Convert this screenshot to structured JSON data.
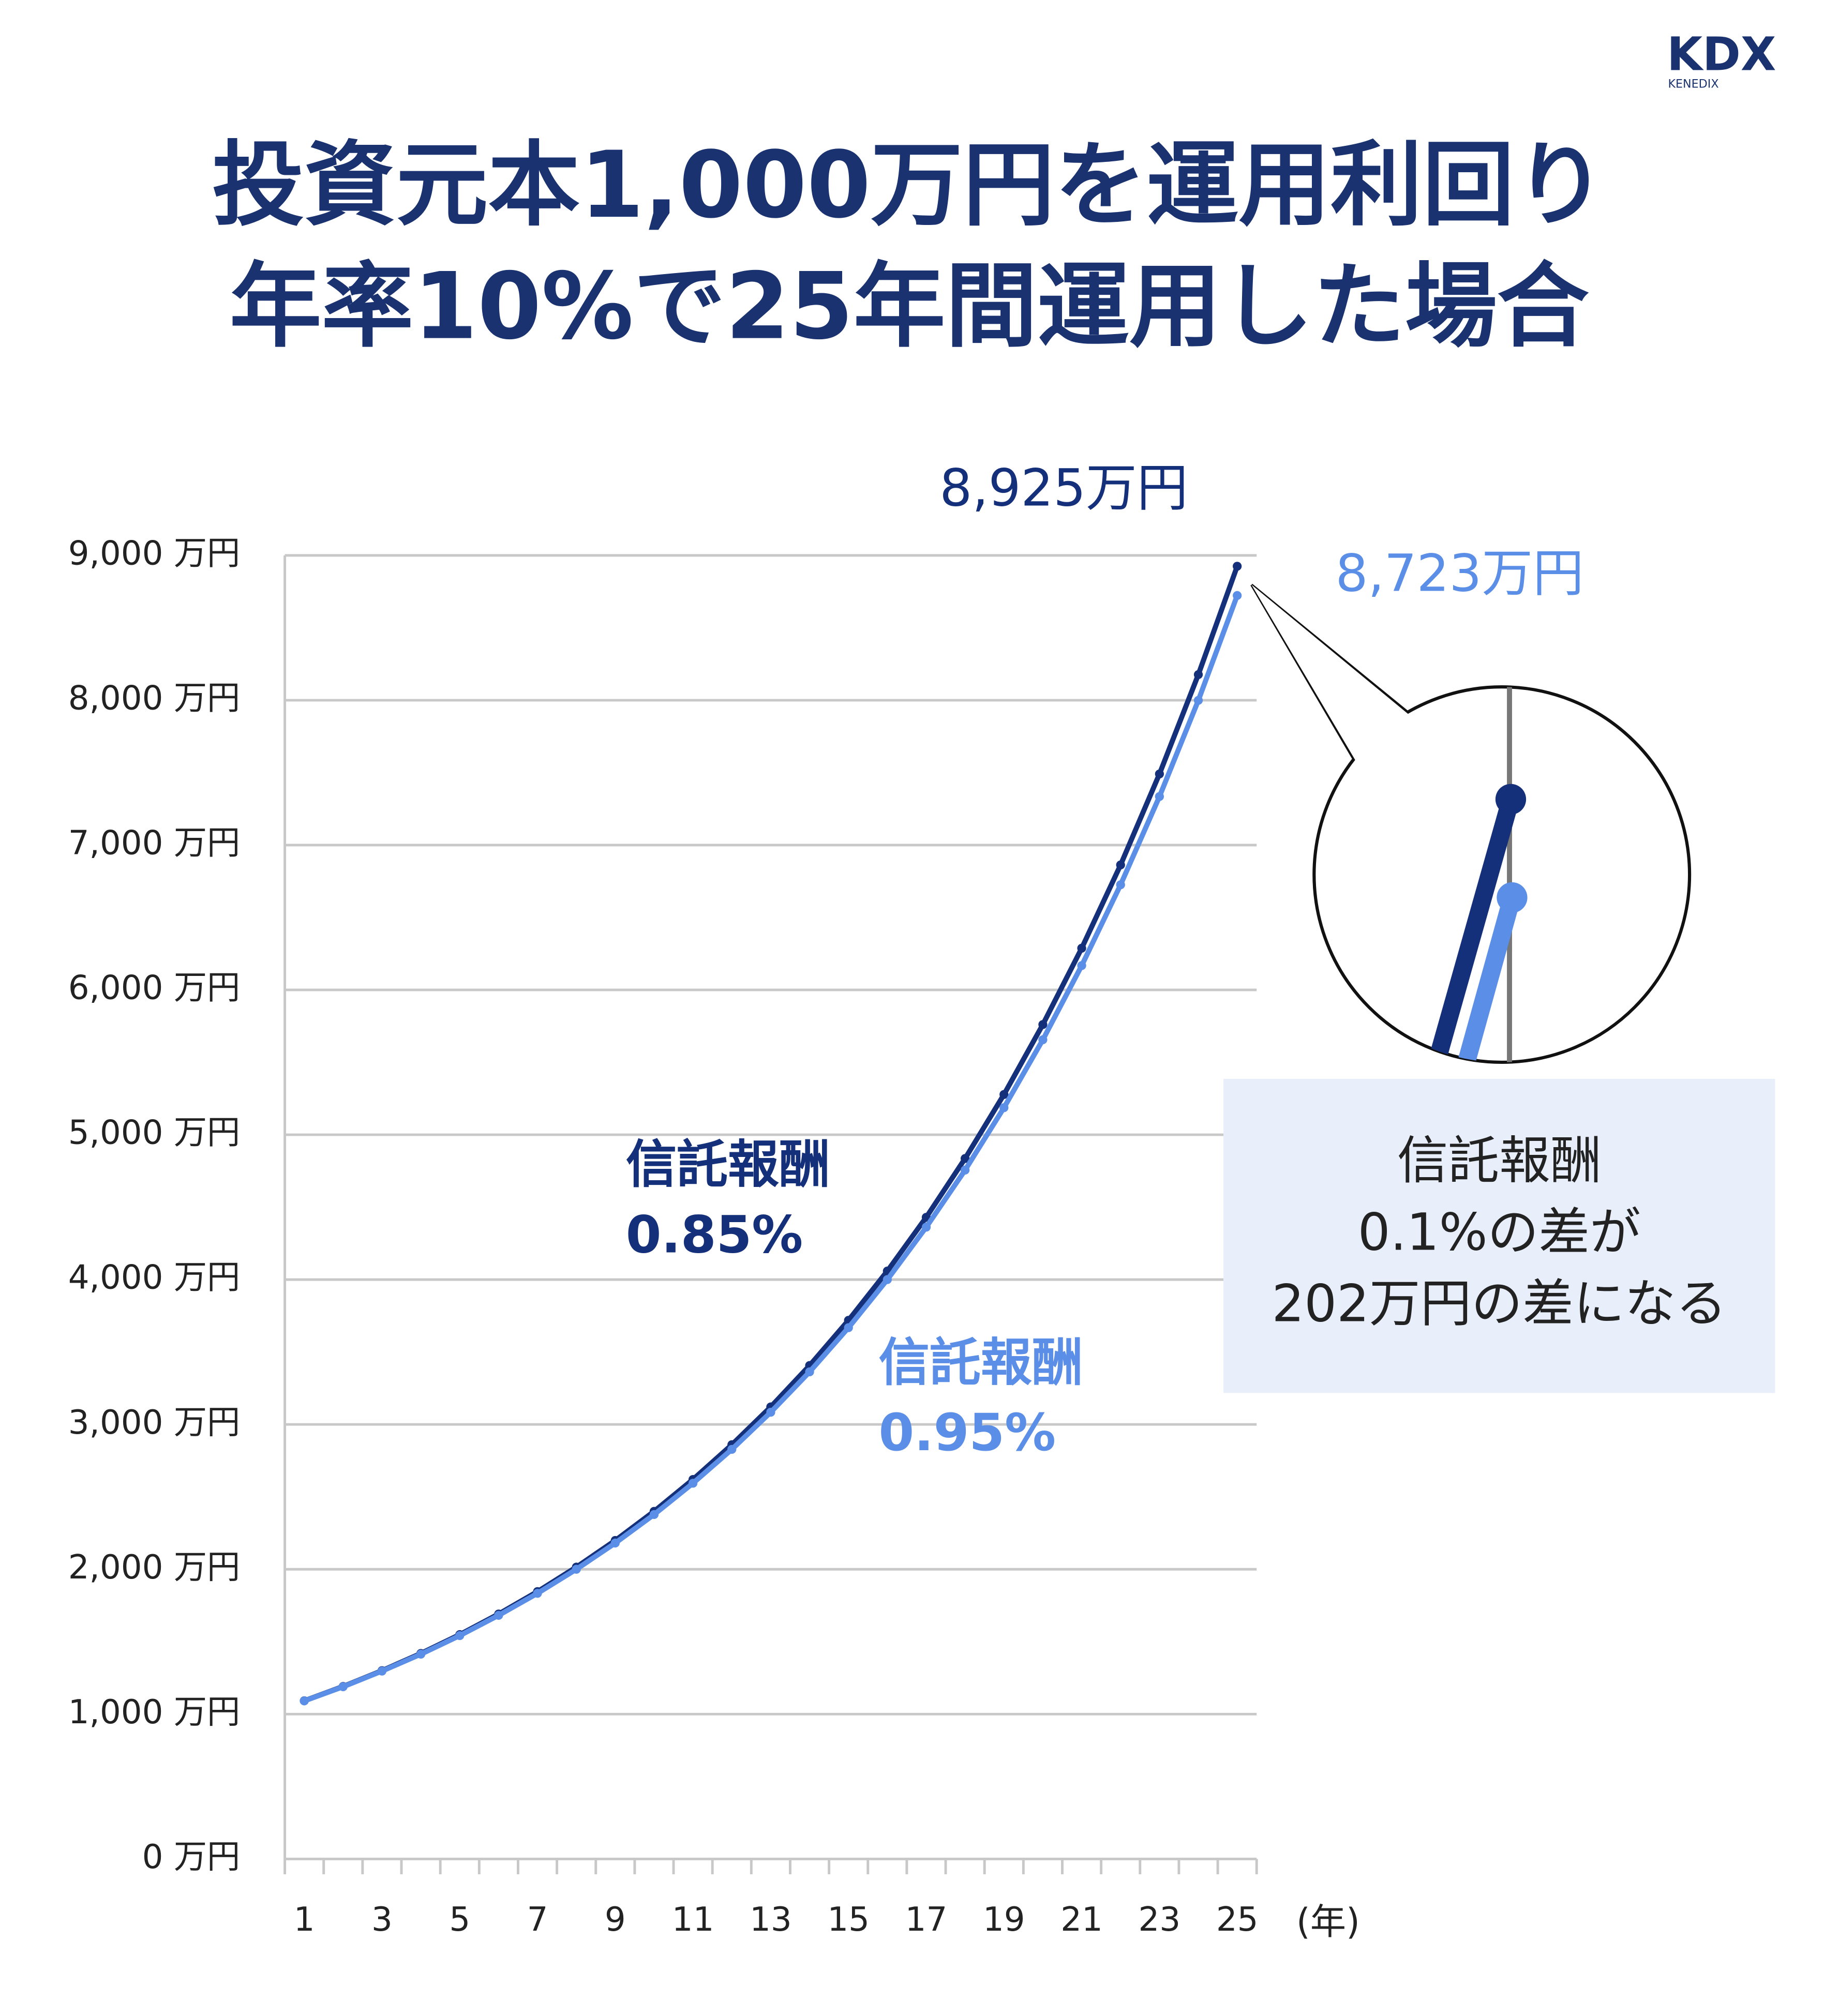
{
  "header": {
    "logo": "KDX",
    "logo_sub": "KENEDIX",
    "title_lines": [
      "投資元本1,000万円を運用利回り",
      "年率10%で25年間運用した場合"
    ]
  },
  "chart_data": {
    "type": "line",
    "categories": [
      "1",
      null,
      "3",
      null,
      "5",
      null,
      "7",
      null,
      "9",
      null,
      "11",
      null,
      "13",
      null,
      "15",
      null,
      "17",
      null,
      "19",
      null,
      "21",
      null,
      "23",
      null,
      "25"
    ],
    "x_label": "(年)",
    "series": [
      {
        "name": "信託報酬",
        "rate": "0.85%",
        "color": "#15307a",
        "values": [
          1092,
          1191,
          1300,
          1419,
          1549,
          1691,
          1846,
          2015,
          2199,
          2400,
          2620,
          2860,
          3121,
          3407,
          3719,
          4059,
          4430,
          4836,
          5278,
          5761,
          6288,
          6863,
          7491,
          8177,
          8925
        ],
        "value_labels": [
          null,
          null,
          null,
          null,
          null,
          null,
          null,
          null,
          null,
          null,
          null,
          null,
          null,
          null,
          null,
          null,
          null,
          null,
          null,
          null,
          null,
          null,
          null,
          null,
          "8,925万円"
        ]
      },
      {
        "name": "信託報酬",
        "rate": "0.95%",
        "color": "#5b8ee6",
        "values": [
          1091,
          1189,
          1297,
          1414,
          1542,
          1682,
          1834,
          2000,
          2181,
          2378,
          2594,
          2828,
          3084,
          3363,
          3668,
          4000,
          4362,
          4756,
          5187,
          5656,
          6168,
          6726,
          7335,
          7999,
          8723
        ],
        "value_labels": [
          null,
          null,
          null,
          null,
          null,
          null,
          null,
          null,
          null,
          null,
          null,
          null,
          null,
          null,
          null,
          null,
          null,
          null,
          null,
          null,
          null,
          null,
          null,
          null,
          "8,723万円"
        ]
      }
    ],
    "ylim": [
      0,
      9000
    ],
    "yticks": [
      {
        "value": 0,
        "label": "0 万円"
      },
      {
        "value": 1000,
        "label": "1,000 万円"
      },
      {
        "value": 2000,
        "label": "2,000 万円"
      },
      {
        "value": 3000,
        "label": "3,000 万円"
      },
      {
        "value": 4000,
        "label": "4,000 万円"
      },
      {
        "value": 5000,
        "label": "5,000 万円"
      },
      {
        "value": 6000,
        "label": "6,000 万円"
      },
      {
        "value": 7000,
        "label": "7,000 万円"
      },
      {
        "value": 8000,
        "label": "8,000 万円"
      },
      {
        "value": 9000,
        "label": "9,000 万円"
      }
    ],
    "grid": true,
    "note_lines": [
      "信託報酬",
      "0.1%の差が",
      "202万円の差になる"
    ]
  }
}
